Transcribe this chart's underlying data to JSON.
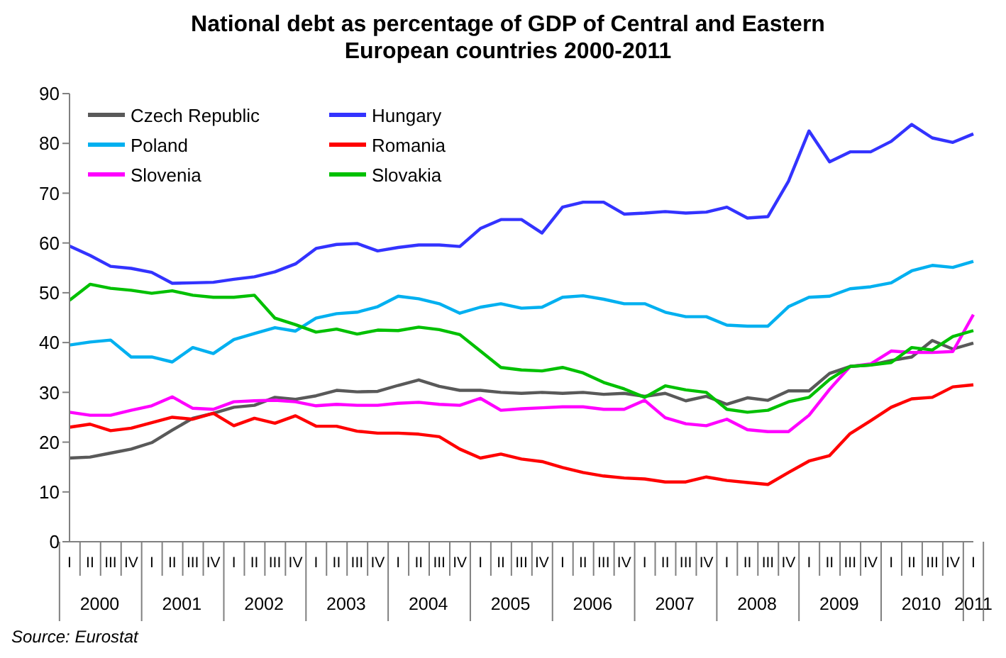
{
  "chart_data": {
    "type": "line",
    "title": "National debt as percentage of GDP of Central and Eastern European countries 2000-2011",
    "categories": [
      "I",
      "II",
      "III",
      "IV",
      "I",
      "II",
      "III",
      "IV",
      "I",
      "II",
      "III",
      "IV",
      "I",
      "II",
      "III",
      "IV",
      "I",
      "II",
      "III",
      "IV",
      "I",
      "II",
      "III",
      "IV",
      "I",
      "II",
      "III",
      "IV",
      "I",
      "II",
      "III",
      "IV",
      "I",
      "II",
      "III",
      "IV",
      "I",
      "II",
      "III",
      "IV",
      "I",
      "II",
      "III",
      "IV",
      "I"
    ],
    "series": [
      {
        "name": "Czech Republic",
        "color": "#595959",
        "values": [
          16.8,
          17.0,
          17.8,
          18.6,
          19.9,
          22.4,
          24.8,
          25.8,
          27.0,
          27.4,
          29.0,
          28.6,
          29.3,
          30.4,
          30.1,
          30.2,
          31.4,
          32.5,
          31.2,
          30.4,
          30.4,
          30.0,
          29.8,
          30.0,
          29.8,
          30.0,
          29.6,
          29.8,
          29.2,
          29.8,
          28.3,
          29.2,
          27.6,
          28.9,
          28.4,
          30.3,
          30.3,
          33.8,
          35.2,
          35.5,
          36.4,
          37.1,
          40.4,
          38.7,
          39.9
        ]
      },
      {
        "name": "Hungary",
        "color": "#3333ff",
        "values": [
          59.4,
          57.5,
          55.3,
          54.9,
          54.1,
          51.9,
          52.0,
          52.1,
          52.7,
          53.2,
          54.2,
          55.8,
          58.9,
          59.7,
          59.9,
          58.4,
          59.1,
          59.6,
          59.6,
          59.3,
          62.9,
          64.7,
          64.7,
          62.0,
          67.2,
          68.2,
          68.2,
          65.8,
          66.0,
          66.3,
          66.0,
          66.2,
          67.2,
          65.0,
          65.3,
          72.4,
          82.5,
          76.3,
          78.3,
          78.3,
          80.4,
          83.8,
          81.1,
          80.2,
          81.9
        ]
      },
      {
        "name": "Poland",
        "color": "#00b0f0",
        "values": [
          39.5,
          40.1,
          40.5,
          37.1,
          37.1,
          36.1,
          39.0,
          37.8,
          40.6,
          41.8,
          43.0,
          42.3,
          44.9,
          45.8,
          46.1,
          47.2,
          49.3,
          48.8,
          47.8,
          45.9,
          47.1,
          47.8,
          46.9,
          47.1,
          49.1,
          49.4,
          48.7,
          47.8,
          47.8,
          46.1,
          45.2,
          45.2,
          43.5,
          43.3,
          43.3,
          47.2,
          49.1,
          49.3,
          50.8,
          51.2,
          52.0,
          54.4,
          55.5,
          55.1,
          56.3
        ]
      },
      {
        "name": "Romania",
        "color": "#ff0000",
        "values": [
          23.0,
          23.6,
          22.3,
          22.8,
          23.9,
          25.0,
          24.6,
          25.8,
          23.3,
          24.8,
          23.8,
          25.3,
          23.2,
          23.2,
          22.2,
          21.8,
          21.8,
          21.6,
          21.1,
          18.6,
          16.8,
          17.6,
          16.6,
          16.1,
          14.9,
          13.9,
          13.2,
          12.8,
          12.6,
          12.0,
          12.0,
          13.0,
          12.3,
          11.9,
          11.5,
          13.9,
          16.2,
          17.3,
          21.7,
          24.3,
          27.0,
          28.7,
          29.0,
          31.1,
          31.5
        ]
      },
      {
        "name": "Slovenia",
        "color": "#ff00ff",
        "values": [
          26.0,
          25.4,
          25.4,
          26.4,
          27.3,
          29.1,
          26.8,
          26.6,
          28.1,
          28.3,
          28.4,
          28.1,
          27.3,
          27.6,
          27.4,
          27.4,
          27.8,
          28.0,
          27.6,
          27.4,
          28.8,
          26.4,
          26.7,
          26.9,
          27.1,
          27.1,
          26.6,
          26.6,
          28.4,
          24.9,
          23.7,
          23.3,
          24.6,
          22.5,
          22.1,
          22.1,
          25.4,
          30.6,
          35.2,
          35.7,
          38.3,
          38.0,
          38.0,
          38.2,
          45.6
        ]
      },
      {
        "name": "Slovakia",
        "color": "#00c000",
        "values": [
          48.5,
          51.7,
          50.9,
          50.5,
          49.9,
          50.4,
          49.5,
          49.1,
          49.1,
          49.5,
          44.9,
          43.6,
          42.1,
          42.7,
          41.7,
          42.5,
          42.4,
          43.1,
          42.6,
          41.6,
          38.3,
          35.0,
          34.5,
          34.3,
          35.0,
          33.9,
          32.0,
          30.7,
          29.0,
          31.3,
          30.5,
          30.0,
          26.6,
          26.0,
          26.4,
          28.1,
          29.0,
          32.6,
          35.2,
          35.5,
          36.0,
          39.0,
          38.5,
          41.2,
          42.4
        ]
      }
    ],
    "ylim": [
      0,
      90
    ],
    "yticks": [
      0,
      10,
      20,
      30,
      40,
      50,
      60,
      70,
      80,
      90
    ],
    "grid": false,
    "legend": "top left",
    "marker": "none",
    "line_style": "solid",
    "annotations": [
      "2000",
      "2001",
      "2002",
      "2003",
      "2004",
      "2005",
      "2006",
      "2007",
      "2008",
      "2009",
      "2010",
      "2011",
      "Source: Eurostat"
    ]
  }
}
